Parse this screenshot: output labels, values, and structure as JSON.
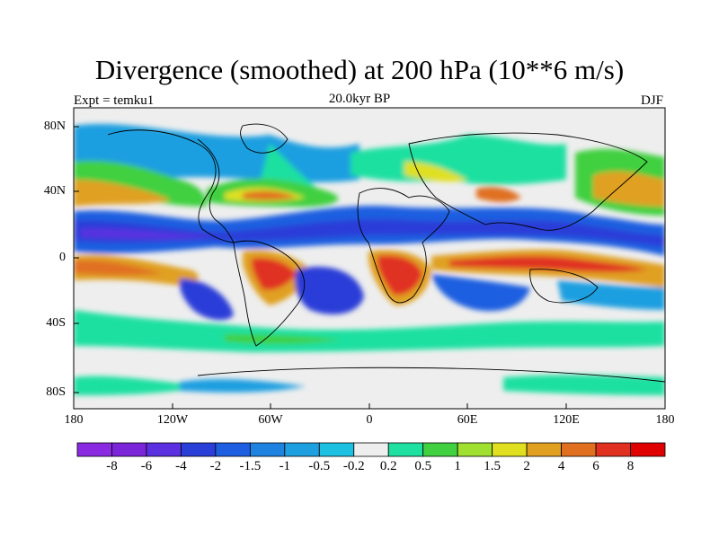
{
  "title": "Divergence (smoothed) at 200 hPa (10**6 m/s)",
  "subtitle_left": "Expt = temku1",
  "subtitle_center": "20.0kyr BP",
  "subtitle_right": "DJF",
  "lat_labels": [
    "80N",
    "40N",
    "0",
    "40S",
    "80S"
  ],
  "lon_labels": [
    "180",
    "120W",
    "60W",
    "0",
    "60E",
    "120E",
    "180"
  ],
  "colorbar": {
    "colors": [
      "#8a2be2",
      "#7a25d8",
      "#5a30e0",
      "#2a3ed8",
      "#1d5fe0",
      "#1e82e0",
      "#1e9fe0",
      "#1cc0e0",
      "#eeeeee",
      "#1ee0a0",
      "#40d040",
      "#a0e030",
      "#e0e020",
      "#e0a020",
      "#e07020",
      "#e03020",
      "#e00000"
    ],
    "labels": [
      "-8",
      "-6",
      "-4",
      "-2",
      "-1.5",
      "-1",
      "-0.5",
      "-0.2",
      "0.2",
      "0.5",
      "1",
      "1.5",
      "2",
      "4",
      "6",
      "8"
    ]
  }
}
